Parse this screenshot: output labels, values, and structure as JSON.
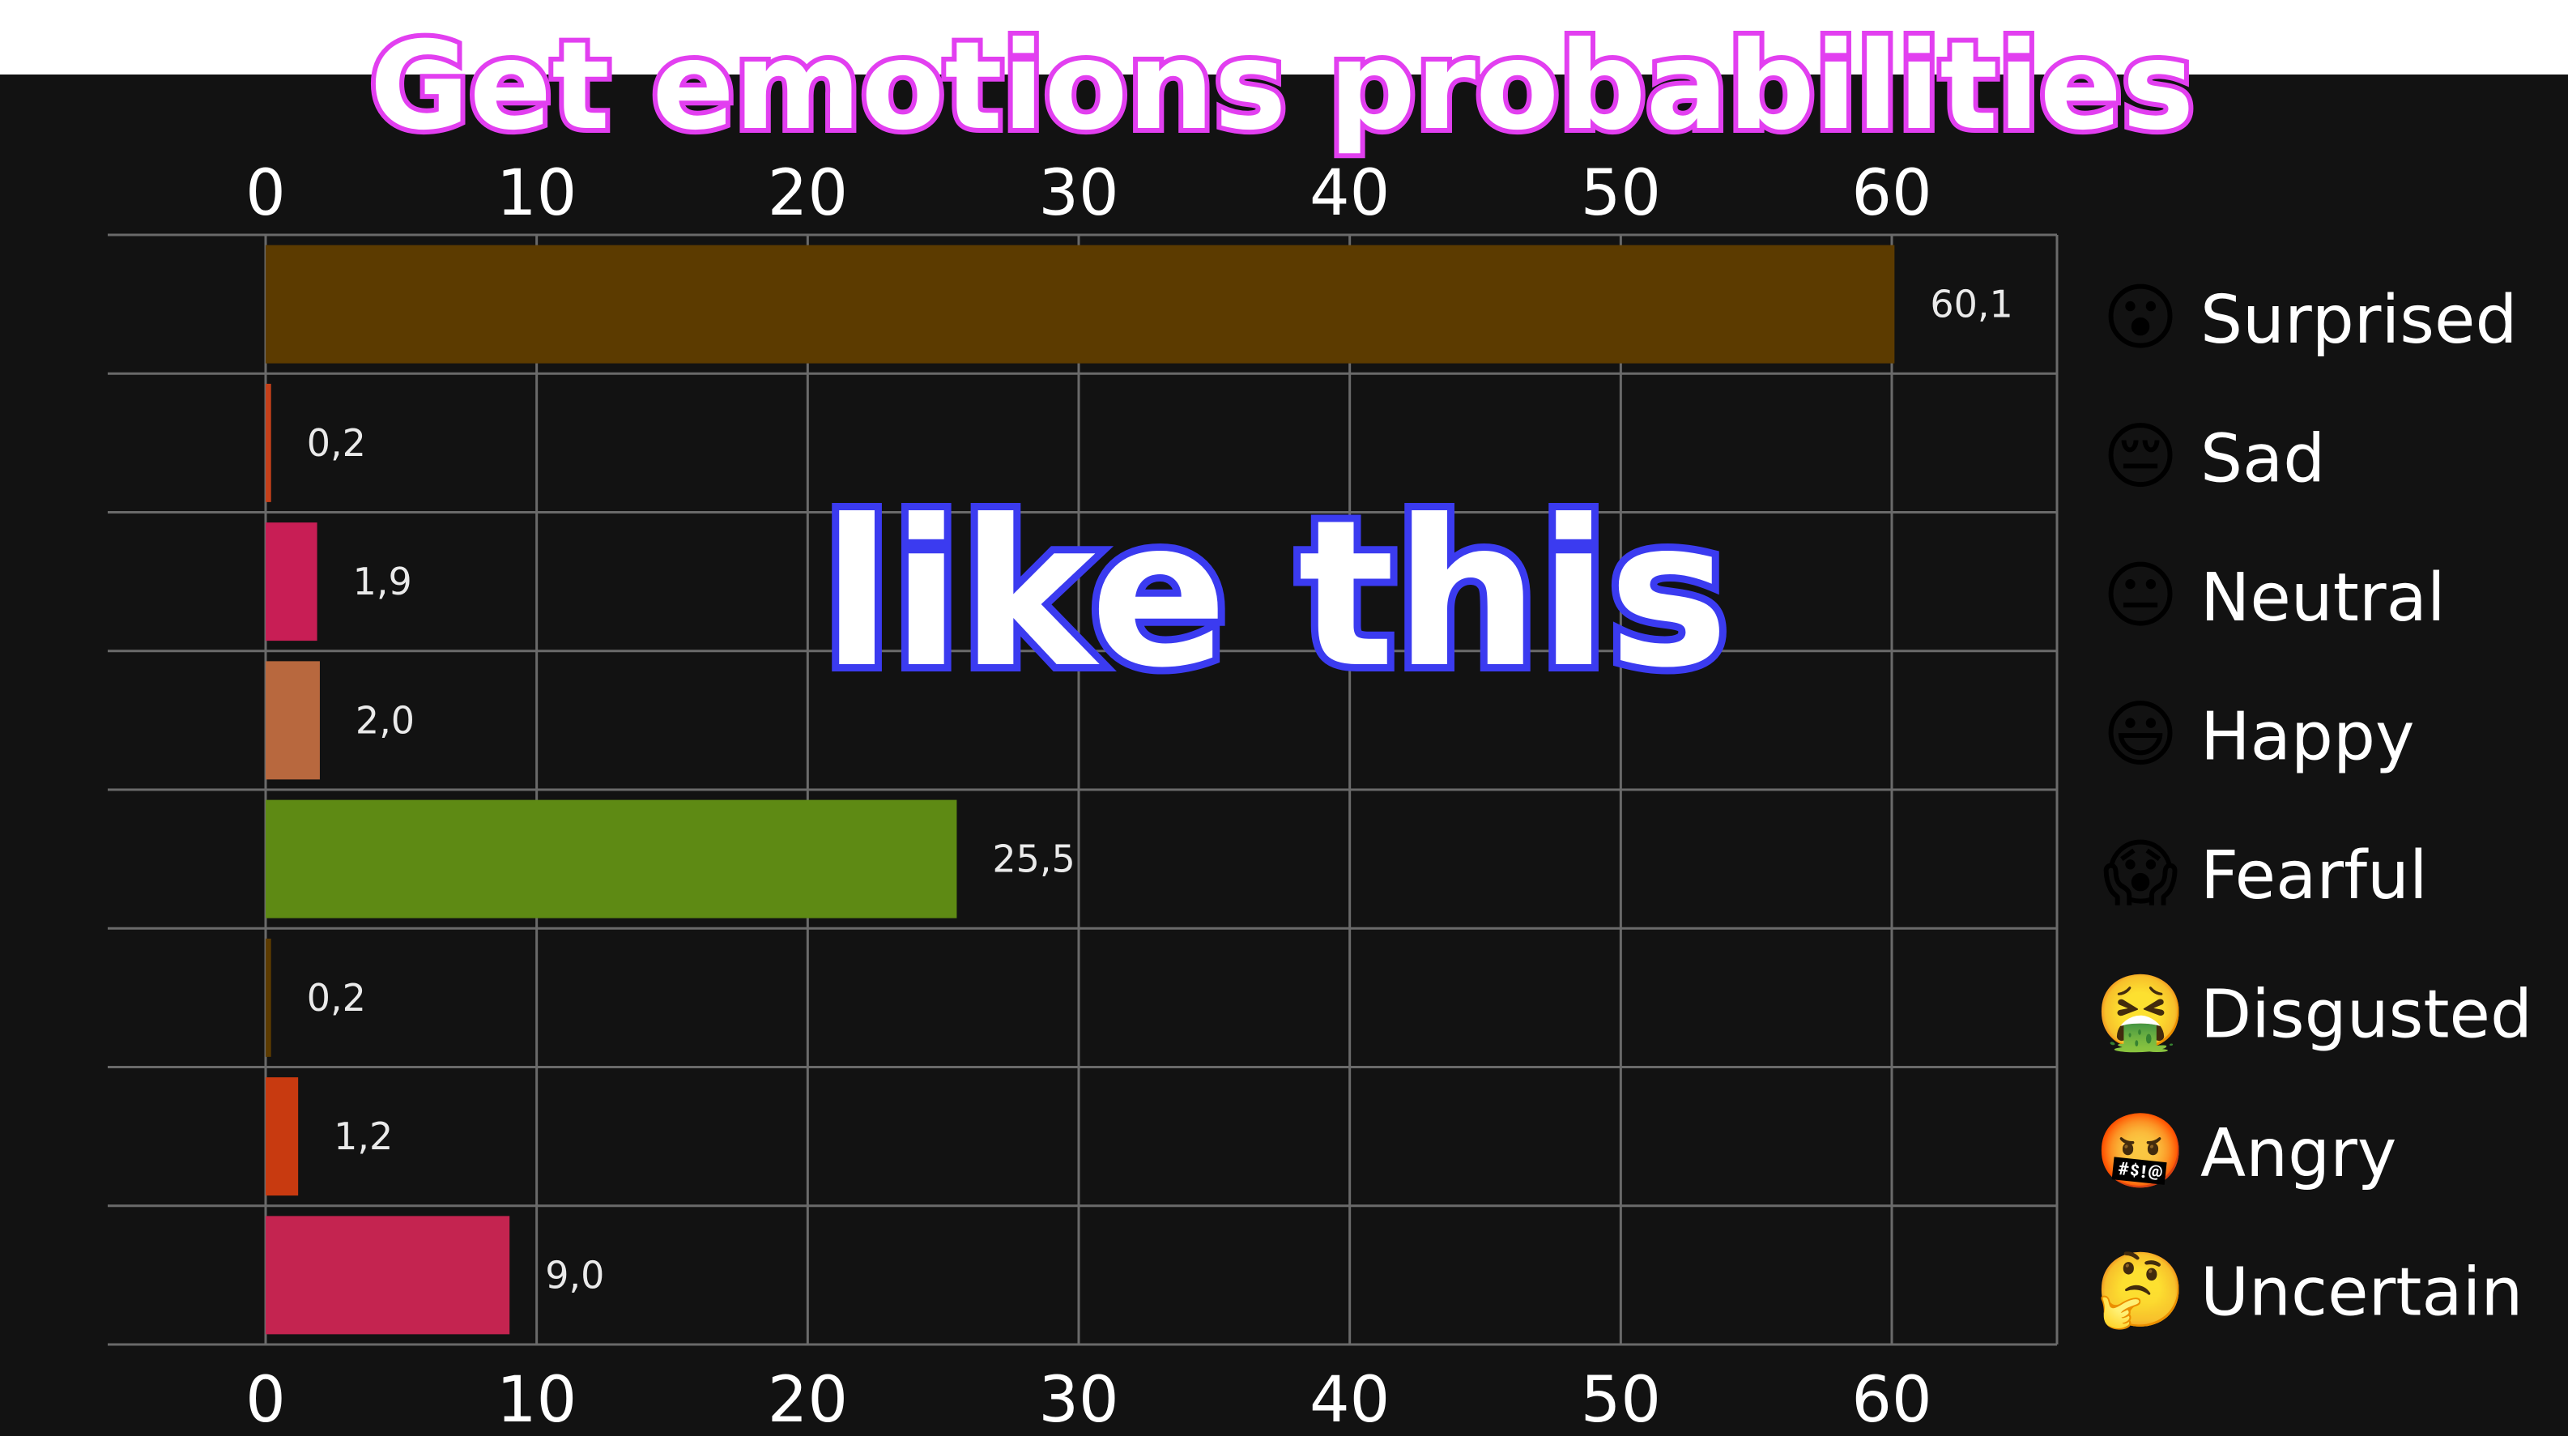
{
  "overlay": {
    "title": "Get emotions probabilities",
    "caption": "like this"
  },
  "colors": {
    "panel_background": "#121212",
    "grid": "#6a6a6a",
    "title_outline": "#e23ff0",
    "caption_outline": "#3b3bf0"
  },
  "chart_data": {
    "type": "bar",
    "orientation": "horizontal",
    "title": "",
    "xlabel": "",
    "ylabel": "",
    "xlim": [
      0,
      60
    ],
    "ticks": [
      "0",
      "10",
      "20",
      "30",
      "40",
      "50",
      "60"
    ],
    "tick_values": [
      0,
      10,
      20,
      30,
      40,
      50,
      60
    ],
    "grid": true,
    "legend_position": "right",
    "categories": [
      "Surprised",
      "Sad",
      "Neutral",
      "Happy",
      "Fearful",
      "Disgusted",
      "Angry",
      "Uncertain"
    ],
    "values": [
      60.1,
      0.2,
      1.9,
      2.0,
      25.5,
      0.2,
      1.2,
      9.0
    ],
    "value_labels": [
      "60,1",
      "0,2",
      "1,9",
      "2,0",
      "25,5",
      "0,2",
      "1,2",
      "9,0"
    ],
    "bar_colors": [
      "#5c3b00",
      "#c4401a",
      "#c81e55",
      "#b8683e",
      "#5e8a14",
      "#5c3b00",
      "#c83a10",
      "#c42450"
    ],
    "legend_icons": [
      "surprised-face-icon",
      "sad-face-icon",
      "neutral-face-icon",
      "happy-face-icon",
      "fearful-face-icon",
      "disgusted-face-icon",
      "angry-face-icon",
      "thinking-face-icon"
    ],
    "legend_glyphs": [
      "😮",
      "😔",
      "😐",
      "😃",
      "😱",
      "🤮",
      "🤬",
      "🤔"
    ]
  }
}
